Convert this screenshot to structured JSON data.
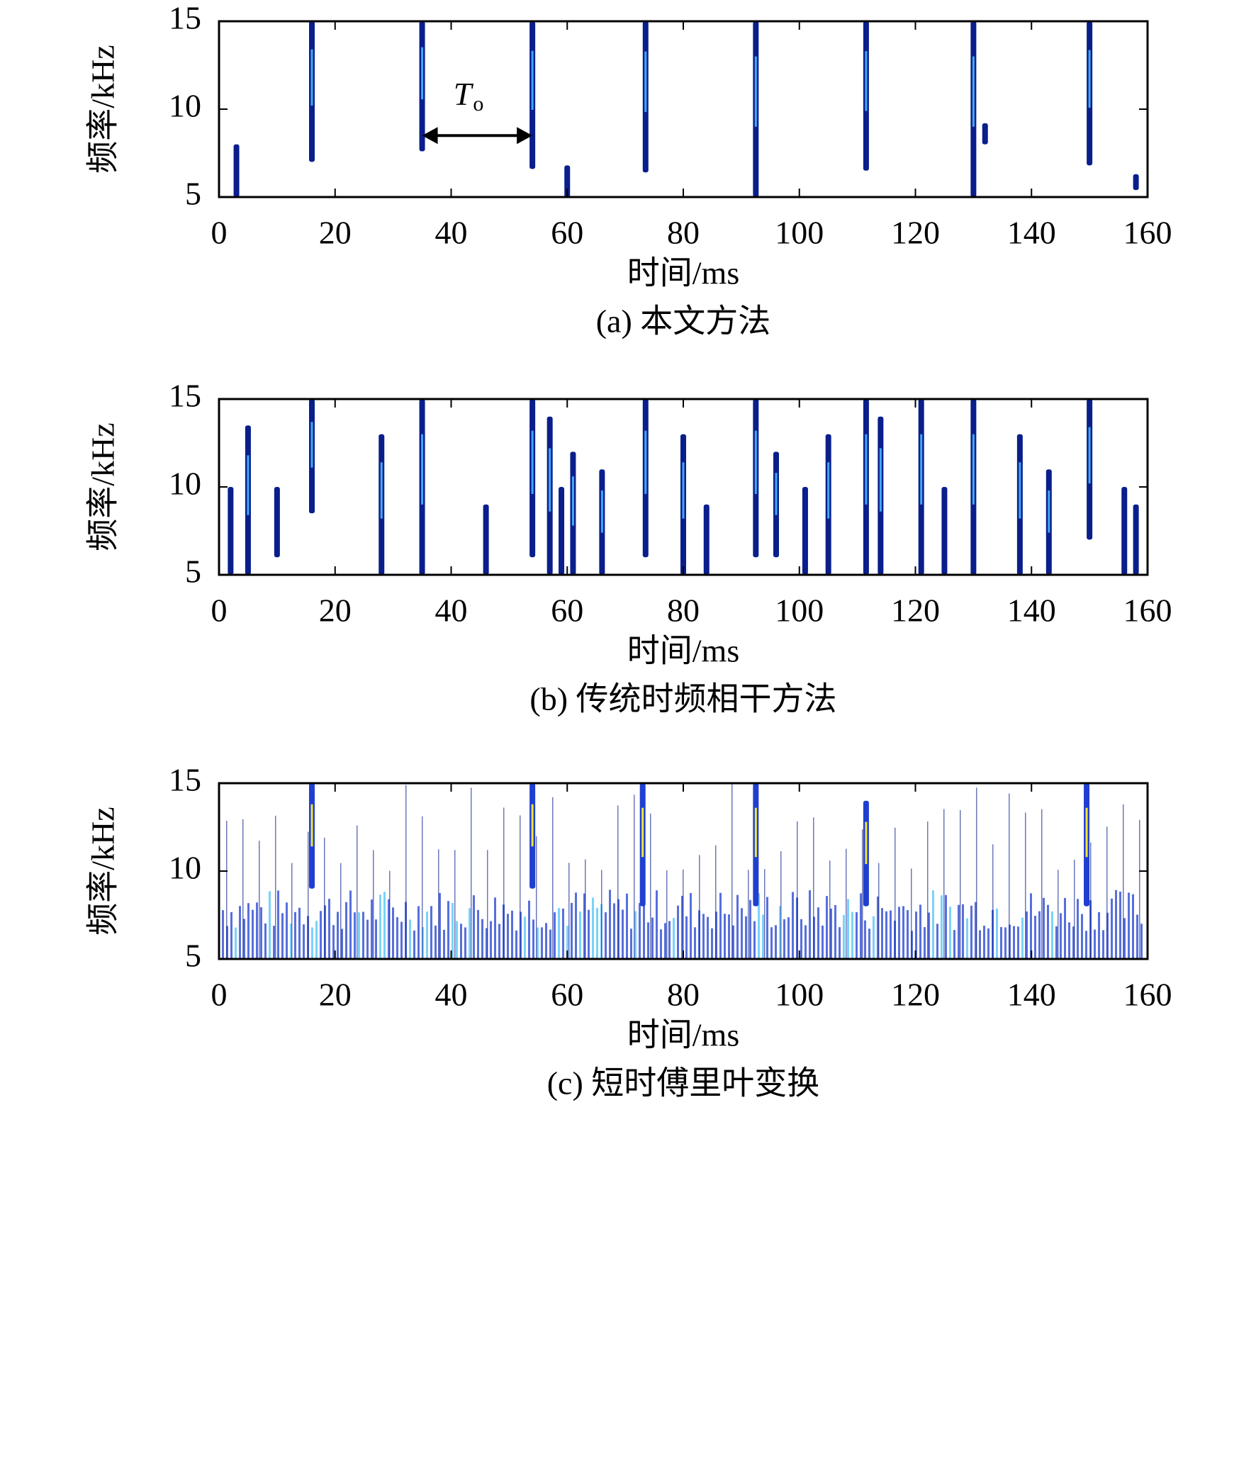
{
  "chart_data": [
    {
      "type": "spectrogram",
      "caption": "(a) 本文方法",
      "xlabel": "时间/ms",
      "ylabel": "频率/kHz",
      "xlim": [
        0,
        160
      ],
      "ylim": [
        5,
        15
      ],
      "xticks": [
        0,
        20,
        40,
        60,
        80,
        100,
        120,
        140,
        160
      ],
      "yticks": [
        5,
        10,
        15
      ],
      "stripe_color": "#0a1e8c",
      "core_color": "#3fa9f5",
      "annotation": {
        "text": "T",
        "subscript": "o",
        "x": [
          35,
          54
        ],
        "y": 8.5
      },
      "stripes": [
        {
          "x": 3,
          "y": [
            5,
            8
          ]
        },
        {
          "x": 16,
          "y": [
            7,
            15
          ]
        },
        {
          "x": 35,
          "y": [
            7.6,
            15
          ]
        },
        {
          "x": 54,
          "y": [
            6.6,
            15
          ]
        },
        {
          "x": 60,
          "y": [
            5,
            6.8
          ]
        },
        {
          "x": 73.5,
          "y": [
            6.4,
            15
          ]
        },
        {
          "x": 92.5,
          "y": [
            5,
            15
          ]
        },
        {
          "x": 111.5,
          "y": [
            6.5,
            15
          ]
        },
        {
          "x": 130,
          "y": [
            5,
            15
          ]
        },
        {
          "x": 132,
          "y": [
            8,
            9.2
          ]
        },
        {
          "x": 150,
          "y": [
            6.8,
            15
          ]
        },
        {
          "x": 158,
          "y": [
            5.4,
            6.3
          ]
        }
      ]
    },
    {
      "type": "spectrogram",
      "caption": "(b) 传统时频相干方法",
      "xlabel": "时间/ms",
      "ylabel": "频率/kHz",
      "xlim": [
        0,
        160
      ],
      "ylim": [
        5,
        15
      ],
      "xticks": [
        0,
        20,
        40,
        60,
        80,
        100,
        120,
        140,
        160
      ],
      "yticks": [
        5,
        10,
        15
      ],
      "stripe_color": "#0a1e8c",
      "core_color": "#3fa9f5",
      "stripes": [
        {
          "x": 2,
          "y": [
            5,
            10
          ]
        },
        {
          "x": 5,
          "y": [
            5,
            13.5
          ]
        },
        {
          "x": 10,
          "y": [
            6,
            10
          ]
        },
        {
          "x": 16,
          "y": [
            8.5,
            15
          ]
        },
        {
          "x": 28,
          "y": [
            5,
            13
          ]
        },
        {
          "x": 35,
          "y": [
            5,
            15
          ]
        },
        {
          "x": 46,
          "y": [
            5,
            9
          ]
        },
        {
          "x": 54,
          "y": [
            6,
            15
          ]
        },
        {
          "x": 57,
          "y": [
            5,
            14
          ]
        },
        {
          "x": 59,
          "y": [
            5,
            10
          ]
        },
        {
          "x": 61,
          "y": [
            5,
            12
          ]
        },
        {
          "x": 66,
          "y": [
            5,
            11
          ]
        },
        {
          "x": 73.5,
          "y": [
            6,
            15
          ]
        },
        {
          "x": 80,
          "y": [
            5,
            13
          ]
        },
        {
          "x": 84,
          "y": [
            5,
            9
          ]
        },
        {
          "x": 92.5,
          "y": [
            6,
            15
          ]
        },
        {
          "x": 96,
          "y": [
            6,
            12
          ]
        },
        {
          "x": 101,
          "y": [
            5,
            10
          ]
        },
        {
          "x": 105,
          "y": [
            5,
            13
          ]
        },
        {
          "x": 111.5,
          "y": [
            5,
            15
          ]
        },
        {
          "x": 114,
          "y": [
            5,
            14
          ]
        },
        {
          "x": 121,
          "y": [
            5,
            15
          ]
        },
        {
          "x": 125,
          "y": [
            5,
            10
          ]
        },
        {
          "x": 130,
          "y": [
            5,
            15
          ]
        },
        {
          "x": 138,
          "y": [
            5,
            13
          ]
        },
        {
          "x": 143,
          "y": [
            5,
            11
          ]
        },
        {
          "x": 150,
          "y": [
            7,
            15
          ]
        },
        {
          "x": 156,
          "y": [
            5,
            10
          ]
        },
        {
          "x": 158,
          "y": [
            5,
            9
          ]
        }
      ]
    },
    {
      "type": "spectrogram",
      "caption": "(c) 短时傅里叶变换",
      "xlabel": "时间/ms",
      "ylabel": "频率/kHz",
      "xlim": [
        0,
        160
      ],
      "ylim": [
        5,
        15
      ],
      "xticks": [
        0,
        20,
        40,
        60,
        80,
        100,
        120,
        140,
        160
      ],
      "yticks": [
        5,
        10,
        15
      ],
      "stripe_color": "#1f3fd0",
      "core_color": "#f2e43a",
      "noise_band": [
        5,
        9
      ],
      "stripes": [
        {
          "x": 16,
          "y": [
            9,
            15
          ]
        },
        {
          "x": 54,
          "y": [
            9,
            15
          ]
        },
        {
          "x": 73,
          "y": [
            8,
            15
          ]
        },
        {
          "x": 92.5,
          "y": [
            8,
            15
          ]
        },
        {
          "x": 111.5,
          "y": [
            8,
            14
          ]
        },
        {
          "x": 149.5,
          "y": [
            8,
            15
          ]
        }
      ]
    }
  ]
}
